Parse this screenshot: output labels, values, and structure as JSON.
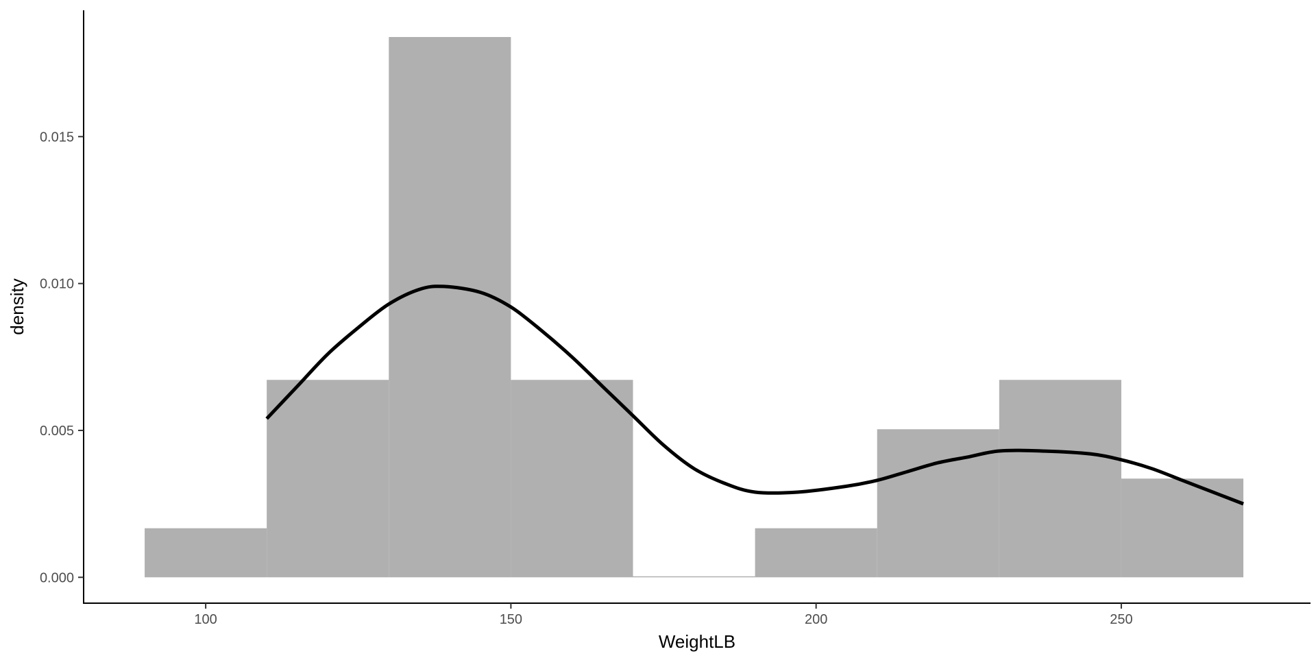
{
  "chart_data": {
    "type": "bar",
    "subtype": "histogram-with-density",
    "title": "",
    "xlabel": "WeightLB",
    "ylabel": "density",
    "xlim": [
      80,
      281
    ],
    "ylim": [
      -0.00088,
      0.0193
    ],
    "x_ticks": [
      100,
      150,
      200,
      250
    ],
    "x_tick_labels": [
      "100",
      "150",
      "200",
      "250"
    ],
    "y_ticks": [
      0.0,
      0.005,
      0.01,
      0.015
    ],
    "y_tick_labels": [
      "0.000",
      "0.005",
      "0.010",
      "0.015"
    ],
    "grid": false,
    "legend": "none",
    "bins": [
      {
        "x0": 90,
        "x1": 110,
        "density": 0.00167
      },
      {
        "x0": 110,
        "x1": 130,
        "density": 0.00672
      },
      {
        "x0": 130,
        "x1": 150,
        "density": 0.01839
      },
      {
        "x0": 150,
        "x1": 170,
        "density": 0.00672
      },
      {
        "x0": 170,
        "x1": 190,
        "density": 0.0
      },
      {
        "x0": 190,
        "x1": 210,
        "density": 0.00167
      },
      {
        "x0": 210,
        "x1": 230,
        "density": 0.00504
      },
      {
        "x0": 230,
        "x1": 250,
        "density": 0.00672
      },
      {
        "x0": 250,
        "x1": 270,
        "density": 0.00336
      }
    ],
    "density_curve": {
      "x": [
        110,
        115,
        120,
        125,
        130,
        135,
        139,
        145,
        150,
        155,
        160,
        165,
        170,
        175,
        180,
        185,
        190,
        197,
        205,
        210,
        215,
        220,
        225,
        230,
        237,
        245,
        250,
        255,
        260,
        265,
        270
      ],
      "y": [
        0.0054,
        0.0065,
        0.0076,
        0.0085,
        0.0093,
        0.0098,
        0.0099,
        0.0097,
        0.0092,
        0.0084,
        0.0075,
        0.0065,
        0.0055,
        0.0045,
        0.0037,
        0.0032,
        0.0029,
        0.0029,
        0.0031,
        0.0033,
        0.0036,
        0.0039,
        0.0041,
        0.0043,
        0.0043,
        0.0042,
        0.004,
        0.0037,
        0.0033,
        0.0029,
        0.0025
      ]
    },
    "colors": {
      "bar_fill": "#b0b0b0",
      "curve": "#000000",
      "axis": "#000000"
    }
  }
}
